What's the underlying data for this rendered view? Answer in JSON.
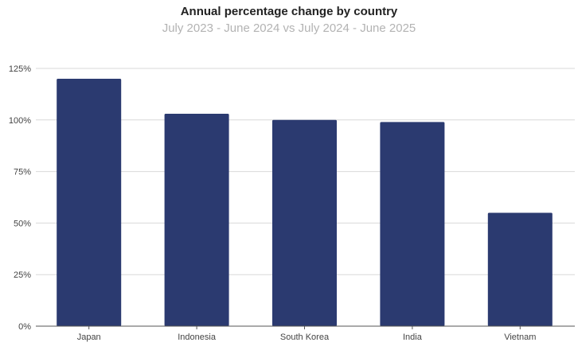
{
  "chart_data": {
    "type": "bar",
    "title": "Annual percentage change by country",
    "subtitle": "July 2023 - June 2024 vs July 2024 - June 2025",
    "categories": [
      "Japan",
      "Indonesia",
      "South Korea",
      "India",
      "Vietnam"
    ],
    "values": [
      120,
      103,
      100,
      99,
      55
    ],
    "ylim": [
      0,
      125
    ],
    "yticks": [
      "0%",
      "25%",
      "50%",
      "75%",
      "100%",
      "125%"
    ],
    "ytick_values": [
      0,
      25,
      50,
      75,
      100,
      125
    ],
    "grid": true,
    "bar_color": "#2b3a70"
  }
}
